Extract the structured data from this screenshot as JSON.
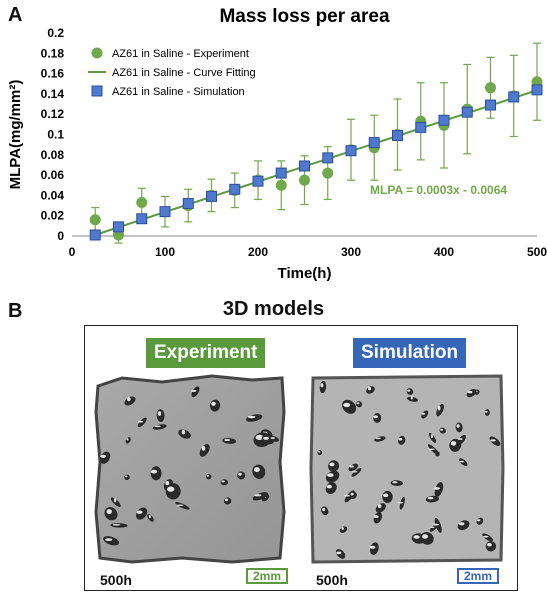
{
  "panel_a_label": "A",
  "panel_b_label": "B",
  "chart_data": {
    "type": "scatter",
    "title": "Mass loss per area",
    "xlabel": "Time(h)",
    "ylabel": "MLPA(mg/mm²)",
    "xlim": [
      0,
      500
    ],
    "ylim": [
      0,
      0.2
    ],
    "xticks": [
      0,
      100,
      200,
      300,
      400,
      500
    ],
    "yticks": [
      0,
      0.02,
      0.04,
      0.06,
      0.08,
      0.1,
      0.12,
      0.14,
      0.16,
      0.18,
      0.2
    ],
    "grid": false,
    "legend_position": "top-left",
    "annotation": "MLPA = 0.0003x - 0.0064",
    "series": [
      {
        "name": "AZ61 in Saline - Experiment",
        "marker": "circle",
        "color": "#70a84b",
        "x": [
          25,
          50,
          75,
          100,
          125,
          150,
          175,
          200,
          225,
          250,
          275,
          300,
          325,
          350,
          375,
          400,
          425,
          450,
          475,
          500
        ],
        "y": [
          0.016,
          0.001,
          0.033,
          0.024,
          0.03,
          0.04,
          0.045,
          0.055,
          0.05,
          0.055,
          0.062,
          0.085,
          0.087,
          0.1,
          0.113,
          0.109,
          0.125,
          0.146,
          0.138,
          0.152
        ],
        "err": [
          0.012,
          0.008,
          0.014,
          0.015,
          0.016,
          0.016,
          0.017,
          0.019,
          0.024,
          0.024,
          0.026,
          0.03,
          0.032,
          0.035,
          0.038,
          0.042,
          0.044,
          0.03,
          0.04,
          0.038
        ]
      },
      {
        "name": "AZ61 in Saline - Curve Fitting",
        "marker": "line",
        "color": "#5b9a3c",
        "x": [
          25,
          500
        ],
        "y": [
          0.0011,
          0.1436
        ]
      },
      {
        "name": "AZ61 in Saline - Simulation",
        "marker": "square",
        "color": "#4f78cf",
        "x": [
          25,
          50,
          75,
          100,
          125,
          150,
          175,
          200,
          225,
          250,
          275,
          300,
          325,
          350,
          375,
          400,
          425,
          450,
          475,
          500
        ],
        "y": [
          0.001,
          0.009,
          0.017,
          0.024,
          0.032,
          0.039,
          0.046,
          0.054,
          0.062,
          0.069,
          0.077,
          0.084,
          0.092,
          0.099,
          0.107,
          0.114,
          0.122,
          0.129,
          0.137,
          0.144
        ]
      }
    ]
  },
  "models": {
    "title": "3D models",
    "experiment_label": "Experiment",
    "simulation_label": "Simulation",
    "time_left": "500h",
    "time_right": "500h",
    "scale_left": "2mm",
    "scale_right": "2mm"
  }
}
